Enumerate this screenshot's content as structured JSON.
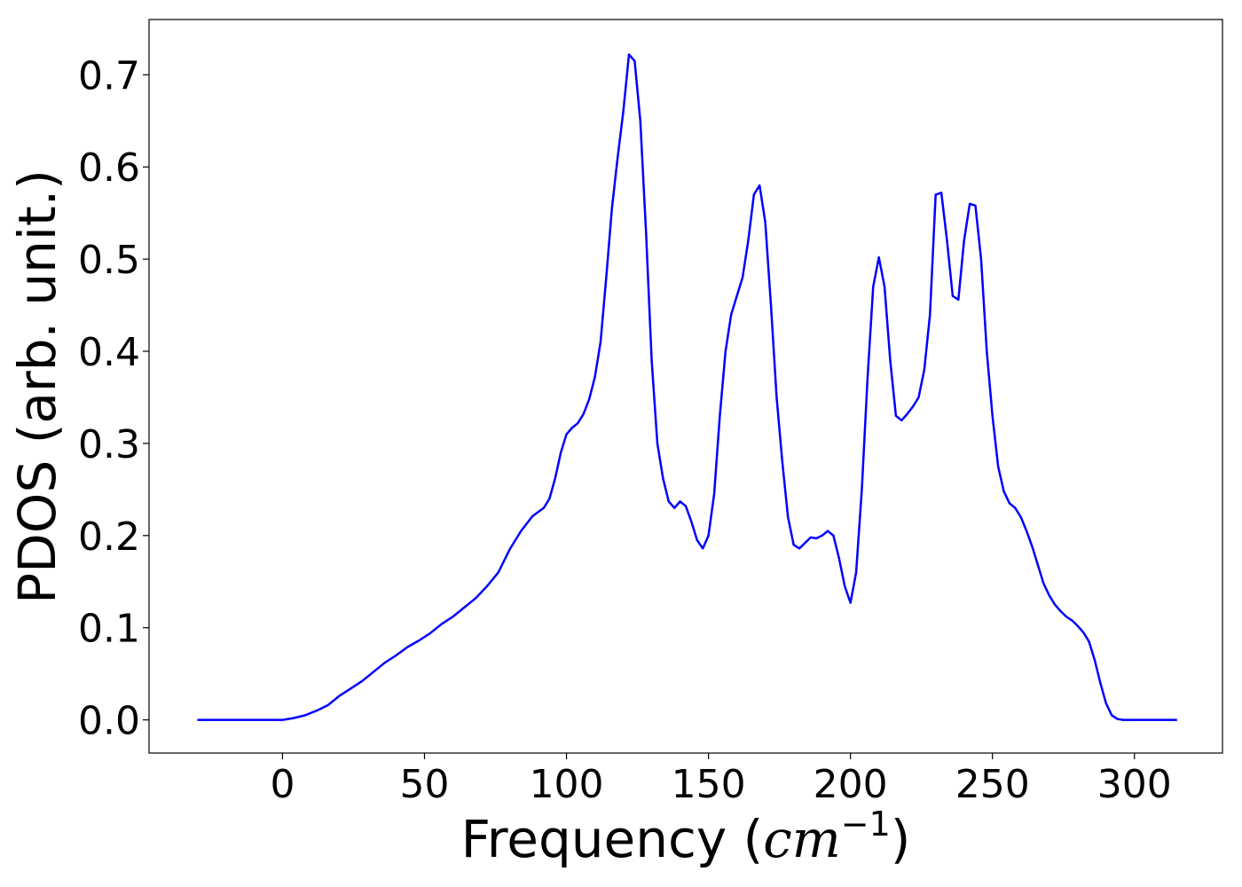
{
  "chart_data": {
    "type": "line",
    "title": "",
    "xlabel": "Frequency",
    "xlabel_unit_prefix": "(",
    "xlabel_unit_base": "cm",
    "xlabel_unit_exponent": "−1",
    "xlabel_unit_suffix": ")",
    "ylabel": "PDOS (arb. unit.)",
    "xlim": [
      -47,
      331
    ],
    "ylim": [
      -0.036,
      0.76
    ],
    "xticks": [
      0,
      50,
      100,
      150,
      200,
      250,
      300
    ],
    "xtick_labels": [
      "0",
      "50",
      "100",
      "150",
      "200",
      "250",
      "300"
    ],
    "yticks": [
      0.0,
      0.1,
      0.2,
      0.3,
      0.4,
      0.5,
      0.6,
      0.7
    ],
    "ytick_labels": [
      "0.0",
      "0.1",
      "0.2",
      "0.3",
      "0.4",
      "0.5",
      "0.6",
      "0.7"
    ],
    "grid": false,
    "line_color": "#0000ff",
    "series": [
      {
        "x": [
          -30,
          -20,
          -10,
          0,
          4,
          8,
          12,
          16,
          20,
          24,
          28,
          32,
          36,
          40,
          44,
          48,
          52,
          56,
          60,
          64,
          68,
          72,
          76,
          80,
          84,
          88,
          92,
          94,
          96,
          98,
          100,
          102,
          104,
          106,
          108,
          110,
          112,
          114,
          116,
          118,
          120,
          122,
          124,
          126,
          128,
          130,
          132,
          134,
          136,
          138,
          140,
          142,
          144,
          146,
          148,
          150,
          152,
          154,
          156,
          158,
          160,
          162,
          164,
          166,
          168,
          170,
          172,
          174,
          176,
          178,
          180,
          182,
          184,
          186,
          188,
          190,
          192,
          194,
          196,
          198,
          200,
          202,
          204,
          206,
          208,
          210,
          212,
          214,
          216,
          218,
          220,
          222,
          224,
          226,
          228,
          230,
          232,
          234,
          236,
          238,
          240,
          242,
          244,
          246,
          248,
          250,
          252,
          254,
          256,
          258,
          260,
          262,
          264,
          266,
          268,
          270,
          272,
          274,
          276,
          278,
          280,
          282,
          284,
          286,
          288,
          290,
          292,
          294,
          296,
          300,
          305,
          310,
          315
        ],
        "y": [
          0.0,
          0.0,
          0.0,
          0.0,
          0.002,
          0.005,
          0.01,
          0.016,
          0.026,
          0.034,
          0.042,
          0.052,
          0.062,
          0.07,
          0.079,
          0.086,
          0.094,
          0.104,
          0.112,
          0.122,
          0.132,
          0.145,
          0.16,
          0.185,
          0.205,
          0.221,
          0.23,
          0.24,
          0.262,
          0.29,
          0.31,
          0.317,
          0.322,
          0.332,
          0.348,
          0.372,
          0.41,
          0.48,
          0.555,
          0.61,
          0.66,
          0.722,
          0.715,
          0.65,
          0.53,
          0.39,
          0.3,
          0.262,
          0.237,
          0.23,
          0.237,
          0.232,
          0.215,
          0.195,
          0.186,
          0.2,
          0.245,
          0.33,
          0.4,
          0.44,
          0.46,
          0.48,
          0.52,
          0.57,
          0.58,
          0.54,
          0.45,
          0.35,
          0.28,
          0.22,
          0.19,
          0.186,
          0.192,
          0.198,
          0.197,
          0.2,
          0.205,
          0.2,
          0.175,
          0.145,
          0.127,
          0.16,
          0.25,
          0.37,
          0.47,
          0.502,
          0.47,
          0.39,
          0.33,
          0.325,
          0.332,
          0.34,
          0.35,
          0.38,
          0.44,
          0.57,
          0.572,
          0.52,
          0.46,
          0.456,
          0.52,
          0.56,
          0.558,
          0.5,
          0.4,
          0.33,
          0.275,
          0.248,
          0.235,
          0.23,
          0.22,
          0.205,
          0.188,
          0.168,
          0.148,
          0.135,
          0.125,
          0.118,
          0.112,
          0.108,
          0.102,
          0.095,
          0.085,
          0.065,
          0.04,
          0.018,
          0.005,
          0.001,
          0.0,
          0.0,
          0.0,
          0.0,
          0.0
        ]
      }
    ]
  }
}
